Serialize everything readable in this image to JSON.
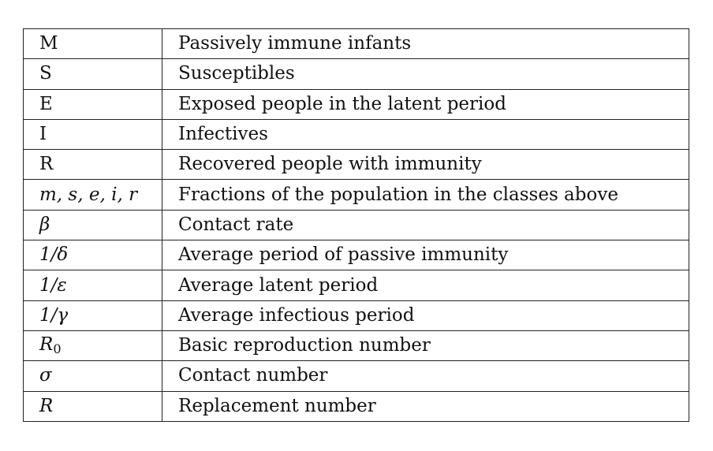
{
  "rows": [
    {
      "symbol": "M",
      "description": "Passively immune infants"
    },
    {
      "symbol": "S",
      "description": "Susceptibles"
    },
    {
      "symbol": "E",
      "description": "Exposed people in the latent period"
    },
    {
      "symbol": "I",
      "description": "Infectives"
    },
    {
      "symbol": "R",
      "description": "Recovered people with immunity"
    },
    {
      "symbol": "m, s, e, i, r",
      "description": "Fractions of the population in the classes above"
    },
    {
      "symbol": "β",
      "description": "Contact rate"
    },
    {
      "symbol": "1/δ",
      "description": "Average period of passive immunity"
    },
    {
      "symbol": "1/ε",
      "description": "Average latent period"
    },
    {
      "symbol": "1/γ",
      "description": "Average infectious period"
    },
    {
      "symbol": "R",
      "symbol_subscript": "0",
      "description": "Basic reproduction number"
    },
    {
      "symbol": "σ",
      "description": "Contact number"
    },
    {
      "symbol": "R",
      "description": "Replacement number"
    }
  ]
}
